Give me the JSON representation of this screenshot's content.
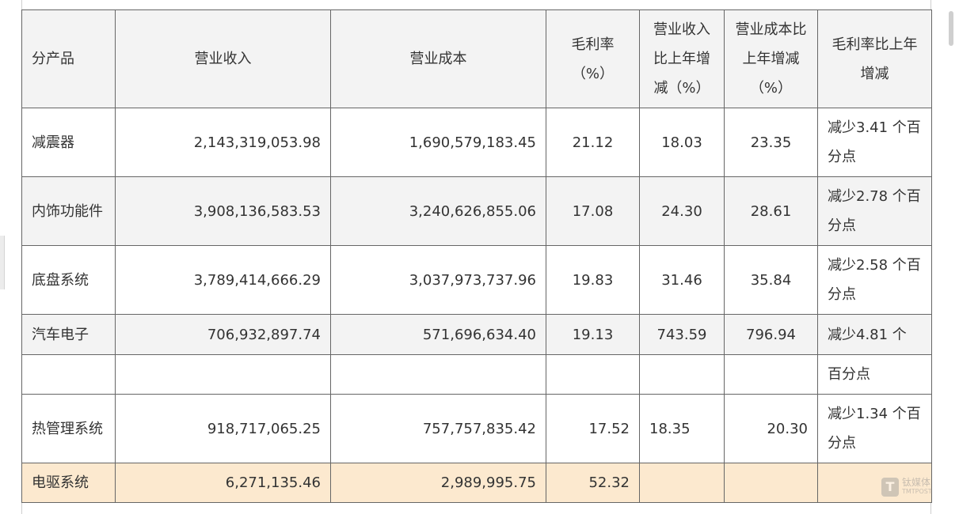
{
  "table": {
    "headers": {
      "product": "分产品",
      "revenue": "营业收入",
      "cost": "营业成本",
      "gross_margin": "毛利率（%）",
      "revenue_change": "营业收入比上年增减（%）",
      "cost_change": "营业成本比上年增减（%）",
      "margin_change": "毛利率比上年增减"
    },
    "rows": [
      {
        "product": "减震器",
        "revenue": "2,143,319,053.98",
        "cost": "1,690,579,183.45",
        "gross_margin": "21.12",
        "revenue_change": "18.03",
        "cost_change": "23.35",
        "margin_change": "减少3.41 个百分点"
      },
      {
        "product": "内饰功能件",
        "revenue": "3,908,136,583.53",
        "cost": "3,240,626,855.06",
        "gross_margin": "17.08",
        "revenue_change": "24.30",
        "cost_change": "28.61",
        "margin_change": "减少2.78 个百分点"
      },
      {
        "product": "底盘系统",
        "revenue": "3,789,414,666.29",
        "cost": "3,037,973,737.96",
        "gross_margin": "19.83",
        "revenue_change": "31.46",
        "cost_change": "35.84",
        "margin_change": "减少2.58 个百分点"
      },
      {
        "product": "汽车电子",
        "revenue": "706,932,897.74",
        "cost": "571,696,634.40",
        "gross_margin": "19.13",
        "revenue_change": "743.59",
        "cost_change": "796.94",
        "margin_change": "减少4.81 个"
      },
      {
        "product": "",
        "revenue": "",
        "cost": "",
        "gross_margin": "",
        "revenue_change": "",
        "cost_change": "",
        "margin_change": "百分点"
      },
      {
        "product": "热管理系统",
        "revenue": "918,717,065.25",
        "cost": "757,757,835.42",
        "gross_margin": "17.52",
        "revenue_change": "18.35",
        "cost_change": "20.30",
        "margin_change": "减少1.34 个百分点"
      },
      {
        "product": "电驱系统",
        "revenue": "6,271,135.46",
        "cost": "2,989,995.75",
        "gross_margin": "52.32",
        "revenue_change": "",
        "cost_change": "",
        "margin_change": ""
      }
    ]
  },
  "watermark": {
    "logo_letter": "T",
    "name": "钛媒体",
    "sub": "TMTPOST"
  }
}
